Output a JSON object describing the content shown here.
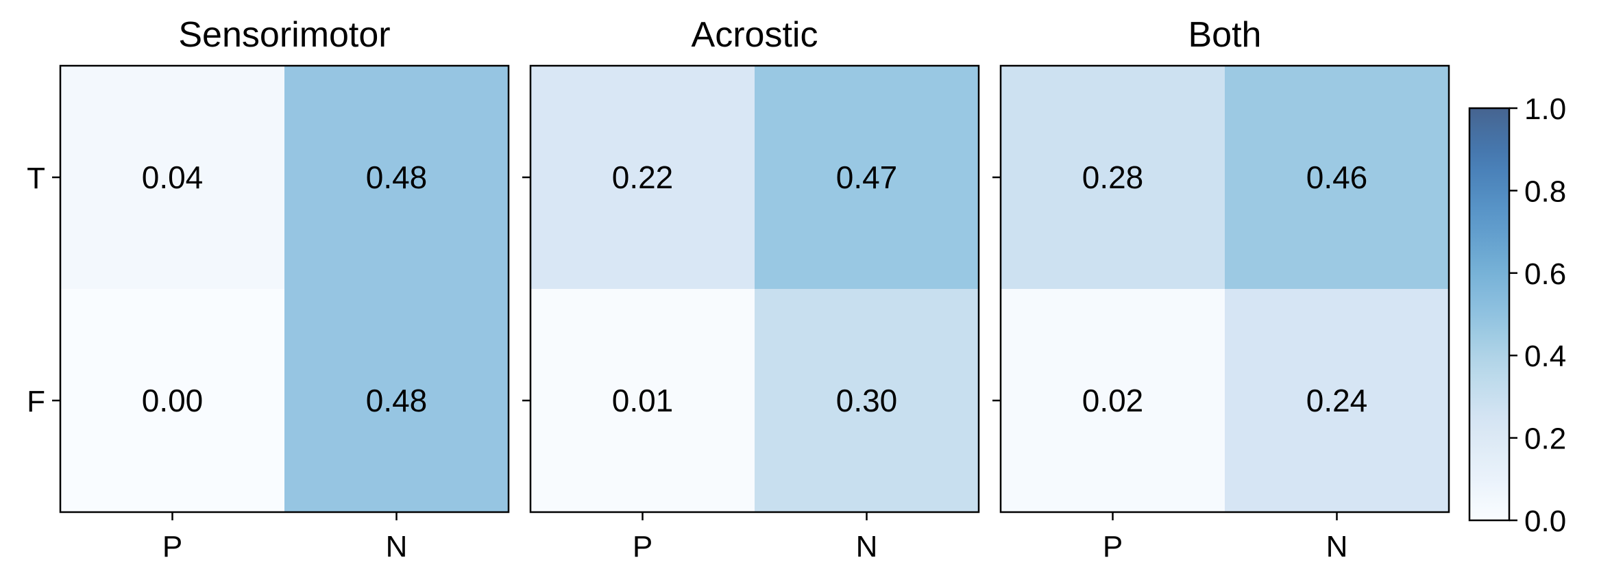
{
  "chart_data": {
    "type": "heatmap",
    "colormap": "Blues",
    "colorbar": {
      "range": [
        0.0,
        1.0
      ],
      "ticks": [
        "0.0",
        "0.2",
        "0.4",
        "0.6",
        "0.8",
        "1.0"
      ]
    },
    "panels": [
      {
        "title": "Sensorimotor",
        "x_categories": [
          "P",
          "N"
        ],
        "y_categories": [
          "T",
          "F"
        ],
        "values": [
          [
            0.04,
            0.48
          ],
          [
            0.0,
            0.48
          ]
        ],
        "labels": [
          [
            "0.04",
            "0.48"
          ],
          [
            "0.00",
            "0.48"
          ]
        ]
      },
      {
        "title": "Acrostic",
        "x_categories": [
          "P",
          "N"
        ],
        "y_categories": [
          "T",
          "F"
        ],
        "values": [
          [
            0.22,
            0.47
          ],
          [
            0.01,
            0.3
          ]
        ],
        "labels": [
          [
            "0.22",
            "0.47"
          ],
          [
            "0.01",
            "0.30"
          ]
        ]
      },
      {
        "title": "Both",
        "x_categories": [
          "P",
          "N"
        ],
        "y_categories": [
          "T",
          "F"
        ],
        "values": [
          [
            0.28,
            0.46
          ],
          [
            0.02,
            0.24
          ]
        ],
        "labels": [
          [
            "0.28",
            "0.46"
          ],
          [
            "0.02",
            "0.24"
          ]
        ]
      }
    ]
  }
}
